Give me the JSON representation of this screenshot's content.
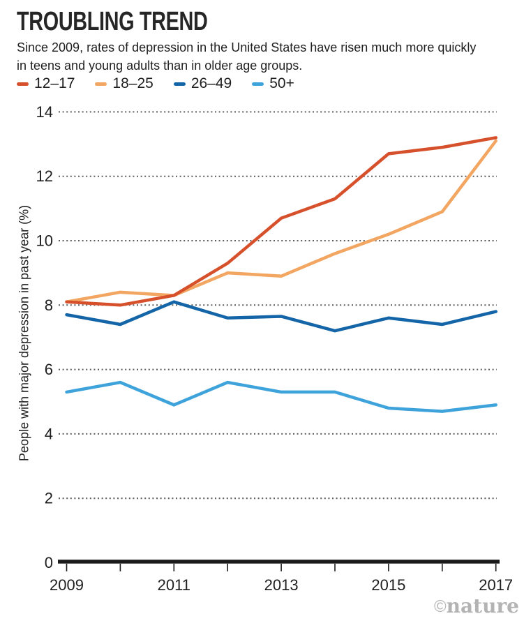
{
  "header": {
    "title": "TROUBLING TREND",
    "subtitle_line1": "Since 2009, rates of depression in the United States have risen much more quickly",
    "subtitle_line2": "in teens and young adults than in older age groups."
  },
  "watermark": {
    "copyright": "©",
    "brand": "nature"
  },
  "colors": {
    "axis": "#1a1a1a",
    "gridline": "#5c5c5c",
    "text": "#1f1f1f",
    "watermark_gray": "#b3b3b3",
    "series_12_17": "#D6502B",
    "series_18_25": "#F2A661",
    "series_26_49": "#1465A8",
    "series_50_plus": "#3FA3DB"
  },
  "chart_data": {
    "type": "line",
    "title": "TROUBLING TREND",
    "x": [
      2009,
      2010,
      2011,
      2012,
      2013,
      2014,
      2015,
      2016,
      2017
    ],
    "x_tick_labels": [
      "2009",
      "2011",
      "2013",
      "2015",
      "2017"
    ],
    "ylabel": "People with major depression in past year (%)",
    "xlabel": "",
    "ylim": [
      0,
      14
    ],
    "y_ticks": [
      0,
      2,
      4,
      6,
      8,
      10,
      12,
      14
    ],
    "grid": "horizontal dotted",
    "legend_position": "top-left",
    "series": [
      {
        "name": "12–17",
        "color": "#D6502B",
        "values": [
          8.1,
          8.0,
          8.3,
          9.3,
          10.7,
          11.3,
          12.7,
          12.9,
          13.2
        ]
      },
      {
        "name": "18–25",
        "color": "#F2A661",
        "values": [
          8.1,
          8.4,
          8.3,
          9.0,
          8.9,
          9.6,
          10.2,
          10.9,
          13.1
        ]
      },
      {
        "name": "26–49",
        "color": "#1465A8",
        "values": [
          7.7,
          7.4,
          8.1,
          7.6,
          7.65,
          7.2,
          7.6,
          7.4,
          7.8
        ]
      },
      {
        "name": "50+",
        "color": "#3FA3DB",
        "values": [
          5.3,
          5.6,
          4.9,
          5.6,
          5.3,
          5.3,
          4.8,
          4.7,
          4.9
        ]
      }
    ]
  }
}
